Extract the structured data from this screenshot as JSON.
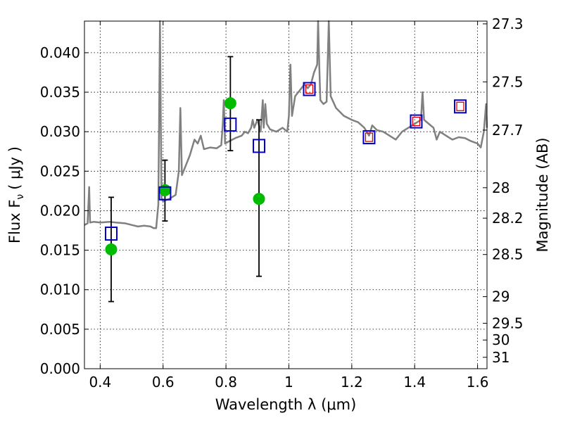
{
  "chart_data": {
    "type": "scatter",
    "title": "",
    "xlabel": "Wavelength  λ (μm)",
    "ylabel_left": "Flux  F",
    "ylabel_left_sub": "ν",
    "ylabel_left_unit": "( μJy )",
    "ylabel_right": "Magnitude (AB)",
    "xlim": [
      0.35,
      1.63
    ],
    "ylim": [
      0.0,
      0.044
    ],
    "grid": true,
    "x_ticks": [
      {
        "value": 0.4,
        "label": "0.4"
      },
      {
        "value": 0.6,
        "label": "0.6"
      },
      {
        "value": 0.8,
        "label": "0.8"
      },
      {
        "value": 1.0,
        "label": "1"
      },
      {
        "value": 1.2,
        "label": "1.2"
      },
      {
        "value": 1.4,
        "label": "1.4"
      },
      {
        "value": 1.6,
        "label": "1.6"
      }
    ],
    "y_ticks": [
      {
        "value": 0.0,
        "label": "0.000"
      },
      {
        "value": 0.005,
        "label": "0.005"
      },
      {
        "value": 0.01,
        "label": "0.010"
      },
      {
        "value": 0.015,
        "label": "0.015"
      },
      {
        "value": 0.02,
        "label": "0.020"
      },
      {
        "value": 0.025,
        "label": "0.025"
      },
      {
        "value": 0.03,
        "label": "0.030"
      },
      {
        "value": 0.035,
        "label": "0.035"
      },
      {
        "value": 0.04,
        "label": "0.040"
      }
    ],
    "right_ticks": [
      {
        "mag": 27.3,
        "label": "27.3"
      },
      {
        "mag": 27.5,
        "label": "27.5"
      },
      {
        "mag": 27.7,
        "label": "27.7"
      },
      {
        "mag": 28.0,
        "label": "28"
      },
      {
        "mag": 28.2,
        "label": "28.2"
      },
      {
        "mag": 28.5,
        "label": "28.5"
      },
      {
        "mag": 29.0,
        "label": "29"
      },
      {
        "mag": 29.5,
        "label": "29.5"
      },
      {
        "mag": 30.0,
        "label": "30"
      },
      {
        "mag": 31.0,
        "label": "31"
      }
    ],
    "model_spectrum": {
      "color": "#808080",
      "points": [
        [
          0.35,
          0.0182
        ],
        [
          0.36,
          0.0184
        ],
        [
          0.365,
          0.023
        ],
        [
          0.368,
          0.0185
        ],
        [
          0.38,
          0.0186
        ],
        [
          0.4,
          0.0185
        ],
        [
          0.43,
          0.0186
        ],
        [
          0.45,
          0.0185
        ],
        [
          0.48,
          0.0184
        ],
        [
          0.5,
          0.0182
        ],
        [
          0.52,
          0.018
        ],
        [
          0.54,
          0.0181
        ],
        [
          0.56,
          0.018
        ],
        [
          0.57,
          0.0178
        ],
        [
          0.578,
          0.0178
        ],
        [
          0.585,
          0.0208
        ],
        [
          0.59,
          0.044
        ],
        [
          0.595,
          0.0215
        ],
        [
          0.6,
          0.0212
        ],
        [
          0.62,
          0.0215
        ],
        [
          0.64,
          0.022
        ],
        [
          0.65,
          0.025
        ],
        [
          0.655,
          0.033
        ],
        [
          0.66,
          0.0245
        ],
        [
          0.67,
          0.0255
        ],
        [
          0.685,
          0.027
        ],
        [
          0.7,
          0.029
        ],
        [
          0.71,
          0.0285
        ],
        [
          0.72,
          0.0295
        ],
        [
          0.73,
          0.0278
        ],
        [
          0.75,
          0.028
        ],
        [
          0.77,
          0.0279
        ],
        [
          0.785,
          0.0283
        ],
        [
          0.79,
          0.031
        ],
        [
          0.793,
          0.034
        ],
        [
          0.797,
          0.0285
        ],
        [
          0.81,
          0.0288
        ],
        [
          0.83,
          0.0292
        ],
        [
          0.85,
          0.0295
        ],
        [
          0.86,
          0.03
        ],
        [
          0.87,
          0.0298
        ],
        [
          0.88,
          0.0305
        ],
        [
          0.885,
          0.0315
        ],
        [
          0.89,
          0.0305
        ],
        [
          0.9,
          0.0315
        ],
        [
          0.91,
          0.03
        ],
        [
          0.917,
          0.034
        ],
        [
          0.92,
          0.0305
        ],
        [
          0.925,
          0.0335
        ],
        [
          0.93,
          0.031
        ],
        [
          0.94,
          0.0303
        ],
        [
          0.96,
          0.03
        ],
        [
          0.98,
          0.0305
        ],
        [
          0.995,
          0.03
        ],
        [
          1.0,
          0.032
        ],
        [
          1.005,
          0.0385
        ],
        [
          1.01,
          0.032
        ],
        [
          1.02,
          0.0345
        ],
        [
          1.03,
          0.035
        ],
        [
          1.04,
          0.0355
        ],
        [
          1.05,
          0.036
        ],
        [
          1.06,
          0.0355
        ],
        [
          1.07,
          0.036
        ],
        [
          1.08,
          0.0375
        ],
        [
          1.09,
          0.0385
        ],
        [
          1.093,
          0.044
        ],
        [
          1.097,
          0.038
        ],
        [
          1.1,
          0.034
        ],
        [
          1.11,
          0.0335
        ],
        [
          1.12,
          0.0338
        ],
        [
          1.127,
          0.044
        ],
        [
          1.133,
          0.0345
        ],
        [
          1.15,
          0.033
        ],
        [
          1.175,
          0.032
        ],
        [
          1.2,
          0.0315
        ],
        [
          1.22,
          0.0312
        ],
        [
          1.24,
          0.0305
        ],
        [
          1.255,
          0.0295
        ],
        [
          1.265,
          0.0308
        ],
        [
          1.28,
          0.0302
        ],
        [
          1.3,
          0.03
        ],
        [
          1.32,
          0.0295
        ],
        [
          1.34,
          0.029
        ],
        [
          1.36,
          0.03
        ],
        [
          1.38,
          0.0305
        ],
        [
          1.4,
          0.031
        ],
        [
          1.42,
          0.0315
        ],
        [
          1.425,
          0.035
        ],
        [
          1.43,
          0.0315
        ],
        [
          1.445,
          0.031
        ],
        [
          1.46,
          0.0305
        ],
        [
          1.47,
          0.029
        ],
        [
          1.48,
          0.03
        ],
        [
          1.5,
          0.0295
        ],
        [
          1.52,
          0.029
        ],
        [
          1.54,
          0.0293
        ],
        [
          1.56,
          0.0292
        ],
        [
          1.58,
          0.0288
        ],
        [
          1.6,
          0.0285
        ],
        [
          1.61,
          0.028
        ],
        [
          1.62,
          0.03
        ],
        [
          1.627,
          0.0335
        ],
        [
          1.63,
          0.0305
        ]
      ]
    },
    "observed": {
      "color": "#00bb00",
      "points": [
        {
          "x": 0.435,
          "y": 0.0151,
          "err_low": 0.0085,
          "err_high": 0.0217
        },
        {
          "x": 0.606,
          "y": 0.0226,
          "err_low": 0.0187,
          "err_high": 0.0264
        },
        {
          "x": 0.814,
          "y": 0.0336,
          "err_low": 0.0276,
          "err_high": 0.0395
        },
        {
          "x": 0.905,
          "y": 0.0215,
          "err_low": 0.0117,
          "err_high": 0.0315
        }
      ]
    },
    "model_photometry": {
      "color": "#0000cc",
      "points": [
        {
          "x": 0.435,
          "y": 0.0171
        },
        {
          "x": 0.606,
          "y": 0.0222
        },
        {
          "x": 0.814,
          "y": 0.0309
        },
        {
          "x": 0.905,
          "y": 0.0282
        },
        {
          "x": 1.065,
          "y": 0.0354
        },
        {
          "x": 1.255,
          "y": 0.0293
        },
        {
          "x": 1.405,
          "y": 0.0313
        },
        {
          "x": 1.545,
          "y": 0.0332
        }
      ]
    },
    "model_photometry_red": {
      "color": "#dd0000",
      "points": [
        {
          "x": 1.065,
          "y": 0.0354
        },
        {
          "x": 1.255,
          "y": 0.0293
        },
        {
          "x": 1.405,
          "y": 0.0313
        },
        {
          "x": 1.545,
          "y": 0.0332
        }
      ]
    }
  }
}
